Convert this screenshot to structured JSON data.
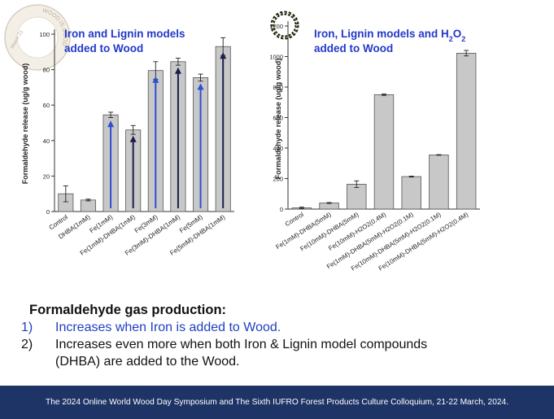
{
  "chart_data": [
    {
      "type": "bar",
      "title": "Iron and Lignin models added to Wood",
      "ylabel": "Formaldehyde release (ug/g wood)",
      "ylim": [
        0,
        100
      ],
      "yticks": [
        0,
        20,
        40,
        60,
        80,
        100
      ],
      "categories": [
        "Control",
        "DHBA(1mM)",
        "Fe(1mM)",
        "Fe(1mM)-DHBA(1mM)",
        "Fe(3mM)",
        "Fe(3mM)-DHBA(1mM)",
        "Fe(5mM)",
        "Fe(5mM)-DHBA(1mM)"
      ],
      "values": [
        10,
        6.5,
        54.5,
        46,
        79.5,
        84.5,
        75.5,
        93
      ],
      "errors": [
        4.5,
        0.5,
        1.5,
        2.5,
        5,
        2,
        2,
        5
      ],
      "arrows": [
        "",
        "",
        "up-blue",
        "up-dark",
        "up-blue",
        "up-dark",
        "up-blue",
        "up-dark"
      ],
      "colors": {
        "bar": "#c8c8c8",
        "stroke": "#555555",
        "arrow_blue": "#2c4fd0",
        "arrow_dark": "#1b1f4a",
        "title": "#2339c9"
      },
      "grid": false
    },
    {
      "type": "bar",
      "title": "Iron, Lignin models and H",
      "title_sub": "2",
      "title_tail": "O",
      "title_sub2": "2",
      "title_line2": "added to Wood",
      "ylabel": "Formaldehyde release (ug/g wood)",
      "ylim": [
        0,
        1200
      ],
      "yticks": [
        0,
        200,
        400,
        600,
        800,
        1000,
        1200
      ],
      "categories": [
        "Control",
        "Fe(1mM)-DHBA(5mM)",
        "Fe(10mM)-DHBA(5mM)",
        "Fe(10mM)-H2O2(0.4M)",
        "Fe(1mM)-DHBA(5mM)-H2O2(0.1M)",
        "Fe(10mM)-DHBA(5mM)-H2O2(0.1M)",
        "Fe(10mM)-DHBA(5mM)-H2O2(0.4M)"
      ],
      "values": [
        8,
        40,
        163,
        750,
        213,
        355,
        1022
      ],
      "errors": [
        5,
        3,
        22,
        5,
        3,
        2,
        18
      ],
      "colors": {
        "bar": "#c8c8c8",
        "stroke": "#555555",
        "title": "#2339c9"
      },
      "grid": false
    }
  ],
  "bullets": {
    "heading": "Formaldehyde gas production:",
    "items": [
      {
        "num": "1)",
        "text": "Increases when Iron is added to Wood."
      },
      {
        "num": "2)",
        "text": "Increases even more when both Iron & Lignin model compounds"
      },
      {
        "num": "",
        "text": "(DHBA) are added to the Wood."
      }
    ]
  },
  "footer": {
    "text": "The 2024 Online World Wood Day Symposium and The Sixth IUFRO Forest Products Culture Colloquium, 21-22 March, 2024."
  },
  "logo": {
    "ring_text": "WOOD IS GOOD",
    "date_text": "March 21",
    "icon": "wood-day-logo-icon"
  }
}
